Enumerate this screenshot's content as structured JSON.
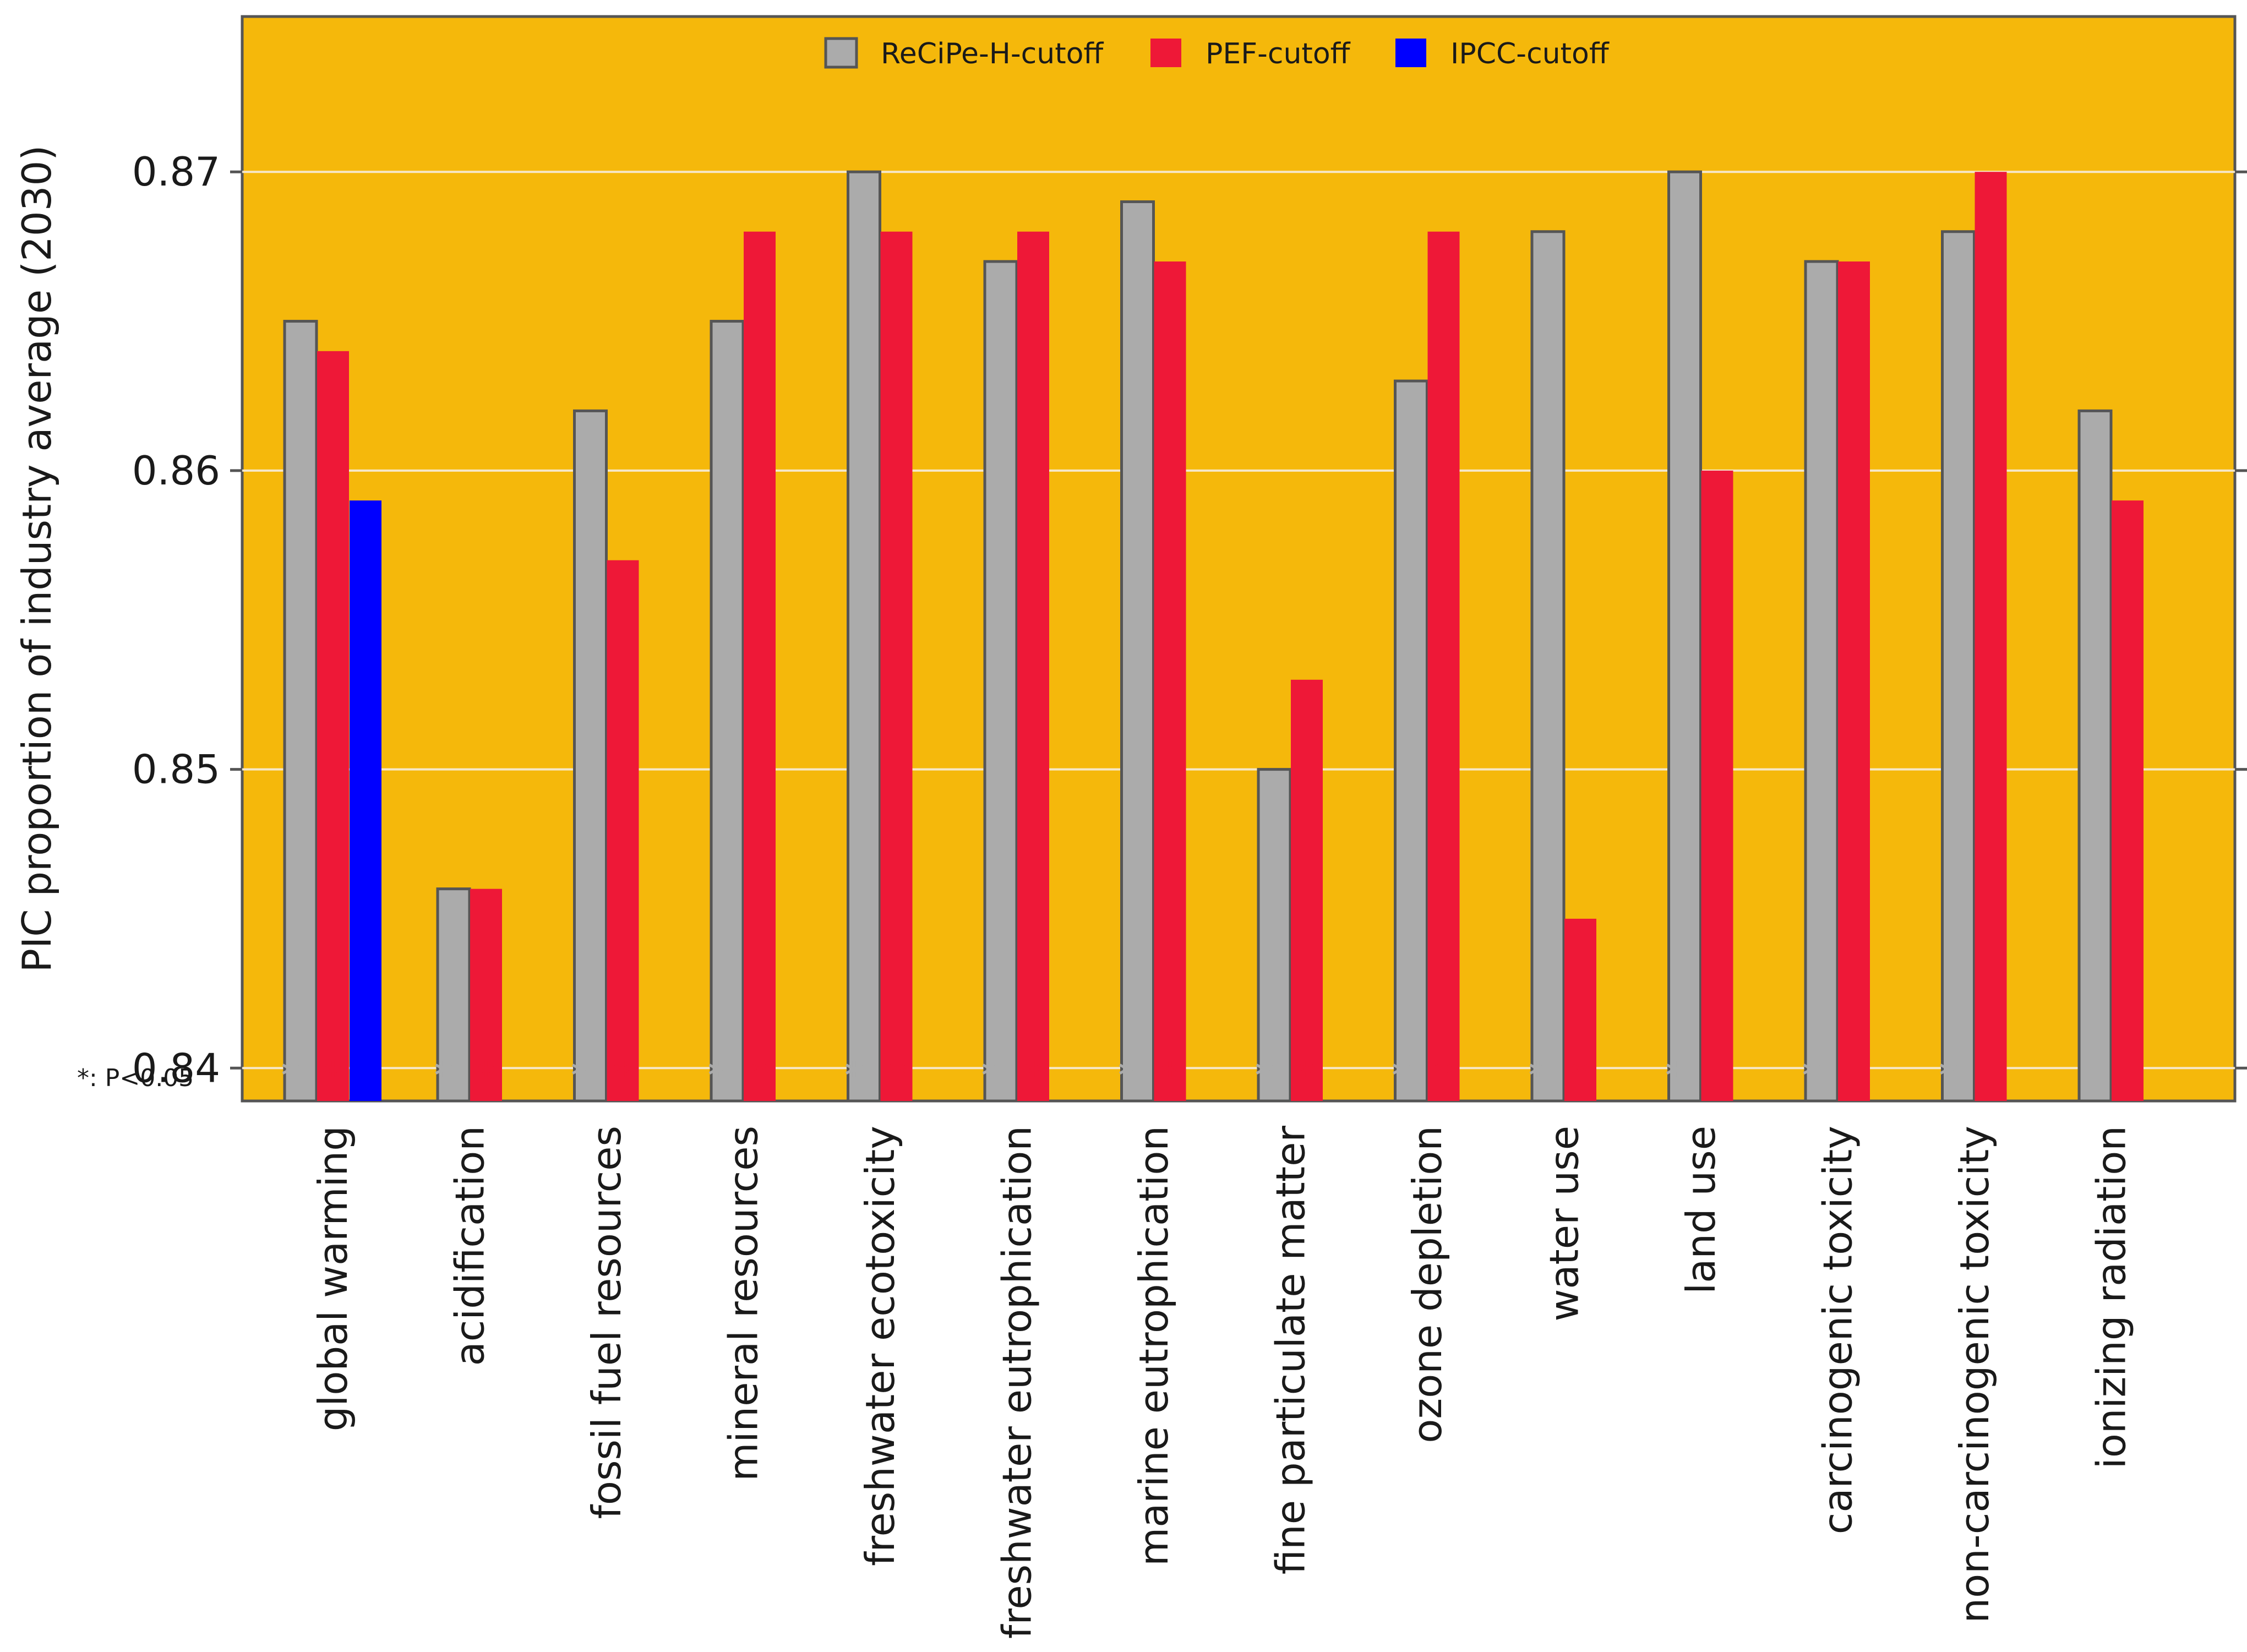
{
  "chart_data": {
    "type": "bar",
    "title": "",
    "xlabel": "",
    "ylabel": "PIC proportion of industry average (2030)",
    "ylim": [
      0.8389,
      0.8752
    ],
    "bar_baseline": 0.8389,
    "yticks": [
      0.84,
      0.85,
      0.86,
      0.87
    ],
    "ytick_labels": [
      "0.84",
      "0.85",
      "0.86",
      "0.87"
    ],
    "grid": true,
    "legend_position": "top-center",
    "background_color": "#F5B80B",
    "categories": [
      "global warming",
      "acidification",
      "fossil fuel resources",
      "mineral resources",
      "freshwater ecotoxicity",
      "freshwater eutrophication",
      "marine eutrophication",
      "fine particulate matter",
      "ozone depletion",
      "water use",
      "land use",
      "carcinogenic toxicity",
      "non-carcinogenic toxicity",
      "ionizing radiation"
    ],
    "series": [
      {
        "name": "ReCiPe-H-cutoff",
        "color": "#ABABAB",
        "edge_color": "#555555",
        "values": [
          0.865,
          0.846,
          0.862,
          0.865,
          0.87,
          0.867,
          0.869,
          0.85,
          0.863,
          0.868,
          0.87,
          0.867,
          0.868,
          0.862
        ],
        "significant": [
          true,
          true,
          true,
          true,
          true,
          true,
          true,
          true,
          true,
          true,
          true,
          true,
          true,
          false
        ]
      },
      {
        "name": "PEF-cutoff",
        "color": "#EE1837",
        "edge_color": "#EE1837",
        "values": [
          0.864,
          0.846,
          0.857,
          0.868,
          0.868,
          0.868,
          0.867,
          0.853,
          0.868,
          0.845,
          0.86,
          0.867,
          0.87,
          0.859
        ],
        "significant": [
          true,
          true,
          true,
          true,
          true,
          true,
          true,
          true,
          true,
          true,
          false,
          false,
          false,
          false
        ]
      },
      {
        "name": "IPCC-cutoff",
        "color": "#0000FF",
        "edge_color": "#0000FF",
        "values": [
          0.859,
          null,
          null,
          null,
          null,
          null,
          null,
          null,
          null,
          null,
          null,
          null,
          null,
          null
        ],
        "significant": [
          true,
          false,
          false,
          false,
          false,
          false,
          false,
          false,
          false,
          false,
          false,
          false,
          false,
          false
        ]
      }
    ],
    "significance_marker": "*",
    "significance_note": "*: P<0.05"
  }
}
